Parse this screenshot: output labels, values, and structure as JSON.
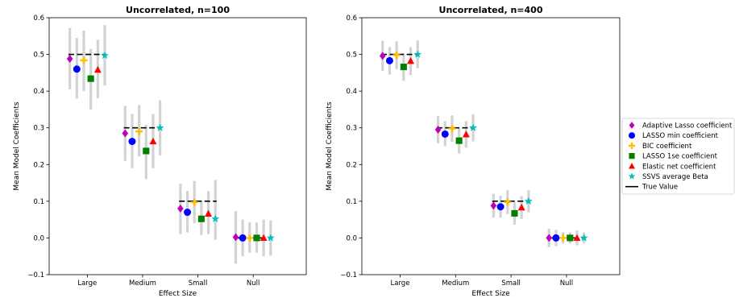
{
  "chart_data": [
    {
      "type": "scatter",
      "title": "Uncorrelated, n=100",
      "xlabel": "Effect Size",
      "ylabel": "Mean Model Coefficients",
      "categories": [
        "Large",
        "Medium",
        "Small",
        "Null"
      ],
      "ylim": [
        -0.1,
        0.6
      ],
      "yticks": [
        "−0.1",
        "0.0",
        "0.1",
        "0.2",
        "0.3",
        "0.4",
        "0.5",
        "0.6"
      ],
      "true_values": [
        0.5,
        0.3,
        0.1,
        0.0
      ],
      "series": [
        {
          "name": "Adaptive Lasso coefficient",
          "values": [
            0.488,
            0.285,
            0.08,
            0.002
          ],
          "err_low": [
            0.405,
            0.21,
            0.01,
            -0.07
          ],
          "err_high": [
            0.572,
            0.36,
            0.148,
            0.073
          ]
        },
        {
          "name": "LASSO min coefficient",
          "values": [
            0.46,
            0.263,
            0.07,
            0.0
          ],
          "err_low": [
            0.38,
            0.19,
            0.015,
            -0.05
          ],
          "err_high": [
            0.545,
            0.338,
            0.128,
            0.05
          ]
        },
        {
          "name": "BIC coefficient",
          "values": [
            0.484,
            0.29,
            0.097,
            0.0
          ],
          "err_low": [
            0.4,
            0.222,
            0.04,
            -0.04
          ],
          "err_high": [
            0.565,
            0.362,
            0.155,
            0.043
          ]
        },
        {
          "name": "LASSO 1se coefficient",
          "values": [
            0.434,
            0.237,
            0.052,
            0.0
          ],
          "err_low": [
            0.35,
            0.16,
            0.008,
            -0.04
          ],
          "err_high": [
            0.515,
            0.308,
            0.102,
            0.042
          ]
        },
        {
          "name": "Elastic net coefficient",
          "values": [
            0.458,
            0.263,
            0.066,
            0.0
          ],
          "err_low": [
            0.38,
            0.19,
            0.01,
            -0.05
          ],
          "err_high": [
            0.54,
            0.338,
            0.128,
            0.05
          ]
        },
        {
          "name": "SSVS average Beta",
          "values": [
            0.497,
            0.3,
            0.052,
            0.0
          ],
          "err_low": [
            0.415,
            0.225,
            -0.005,
            -0.048
          ],
          "err_high": [
            0.58,
            0.375,
            0.158,
            0.048
          ]
        }
      ]
    },
    {
      "type": "scatter",
      "title": "Uncorrelated, n=400",
      "xlabel": "Effect Size",
      "ylabel": "Mean Model Coefficients",
      "categories": [
        "Large",
        "Medium",
        "Small",
        "Null"
      ],
      "ylim": [
        -0.1,
        0.6
      ],
      "yticks": [
        "−0.1",
        "0.0",
        "0.1",
        "0.2",
        "0.3",
        "0.4",
        "0.5",
        "0.6"
      ],
      "true_values": [
        0.5,
        0.3,
        0.1,
        0.0
      ],
      "series": [
        {
          "name": "Adaptive Lasso coefficient",
          "values": [
            0.496,
            0.295,
            0.088,
            0.0
          ],
          "err_low": [
            0.455,
            0.258,
            0.055,
            -0.025
          ],
          "err_high": [
            0.537,
            0.332,
            0.12,
            0.025
          ]
        },
        {
          "name": "LASSO min coefficient",
          "values": [
            0.483,
            0.283,
            0.085,
            0.0
          ],
          "err_low": [
            0.445,
            0.25,
            0.055,
            -0.022
          ],
          "err_high": [
            0.52,
            0.318,
            0.115,
            0.022
          ]
        },
        {
          "name": "BIC coefficient",
          "values": [
            0.498,
            0.298,
            0.098,
            0.0
          ],
          "err_low": [
            0.46,
            0.262,
            0.065,
            -0.015
          ],
          "err_high": [
            0.536,
            0.334,
            0.13,
            0.015
          ]
        },
        {
          "name": "LASSO 1se coefficient",
          "values": [
            0.466,
            0.265,
            0.067,
            0.0
          ],
          "err_low": [
            0.428,
            0.23,
            0.036,
            -0.015
          ],
          "err_high": [
            0.503,
            0.3,
            0.097,
            0.015
          ]
        },
        {
          "name": "Elastic net coefficient",
          "values": [
            0.482,
            0.282,
            0.083,
            0.0
          ],
          "err_low": [
            0.444,
            0.246,
            0.052,
            -0.02
          ],
          "err_high": [
            0.52,
            0.318,
            0.114,
            0.02
          ]
        },
        {
          "name": "SSVS average Beta",
          "values": [
            0.5,
            0.3,
            0.1,
            0.0
          ],
          "err_low": [
            0.462,
            0.263,
            0.07,
            -0.015
          ],
          "err_high": [
            0.538,
            0.337,
            0.13,
            0.015
          ]
        }
      ]
    }
  ],
  "legend": {
    "placement": "right",
    "items": [
      {
        "label": "Adaptive Lasso coefficient",
        "marker": "diamond",
        "color": "#bf00bf"
      },
      {
        "label": "LASSO min coefficient",
        "marker": "circle",
        "color": "#0000ff"
      },
      {
        "label": "BIC coefficient",
        "marker": "plus",
        "color": "#ffbf00"
      },
      {
        "label": "LASSO 1se coefficient",
        "marker": "square",
        "color": "#008000"
      },
      {
        "label": "Elastic net coefficient",
        "marker": "triangle",
        "color": "#ff0000"
      },
      {
        "label": "SSVS average Beta",
        "marker": "star",
        "color": "#00bfbf"
      },
      {
        "label": "True Value",
        "marker": "line",
        "color": "#000000"
      }
    ]
  },
  "errorbar_color": "#d3d3d3"
}
